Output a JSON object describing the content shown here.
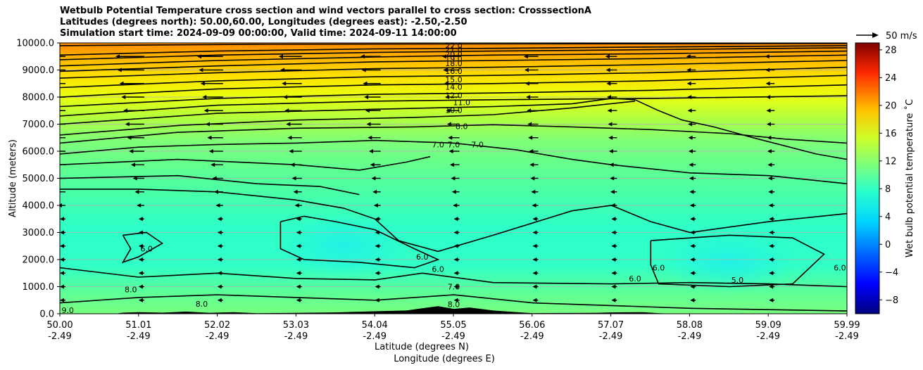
{
  "chart_data": {
    "type": "heatmap",
    "title": [
      "Wetbulb Potential Temperature cross section and wind vectors parallel to cross section: CrosssectionA",
      "Latitudes (degrees north): 50.00,60.00, Longitudes (degrees east): -2.50,-2.50",
      "Simulation start time: 2024-09-09 00:00:00, Valid time: 2024-09-11 14:00:00"
    ],
    "ylabel": "Altitude (meters)",
    "xlabel_lat": "Latitude (degrees N)",
    "xlabel_lon": "Longitude (degrees E)",
    "ylim": [
      0,
      10000
    ],
    "yticks": [
      "0.0",
      "1000.0",
      "2000.0",
      "3000.0",
      "4000.0",
      "5000.0",
      "6000.0",
      "7000.0",
      "8000.0",
      "9000.0",
      "10000.0"
    ],
    "xticks_lat": [
      "50.00",
      "51.01",
      "52.02",
      "53.03",
      "54.04",
      "55.05",
      "56.06",
      "57.07",
      "58.08",
      "59.09",
      "59.99"
    ],
    "xticks_lon": [
      "-2.49",
      "-2.49",
      "-2.49",
      "-2.49",
      "-2.49",
      "-2.49",
      "-2.49",
      "-2.49",
      "-2.49",
      "-2.49",
      "-2.49"
    ],
    "grid": "horizontal",
    "colorbar": {
      "label": "Wet bulb potential temperature ˚C",
      "colormap": "jet",
      "range": [
        -10,
        29
      ],
      "ticks": [
        "−8",
        "−4",
        "0",
        "4",
        "8",
        "12",
        "16",
        "20",
        "24",
        "28"
      ]
    },
    "quiver_key": "50 m/s",
    "contour_labels": [
      "22.0",
      "21.0",
      "20.0",
      "19.0",
      "18.0",
      "16.0",
      "15.0",
      "14.0",
      "12.0",
      "11.0",
      "10.0",
      "8.0",
      "7.0",
      "7.0",
      "7.0",
      "6.0",
      "6.0",
      "6.0",
      "6.0",
      "5.0",
      "6.0",
      "7.0",
      "8.0",
      "8.0",
      "8.0",
      "9.0",
      "6.0"
    ],
    "contour_lines": [
      {
        "level": 22,
        "points": [
          [
            50.0,
            9900
          ],
          [
            52.5,
            9950
          ],
          [
            55.0,
            9960
          ],
          [
            57.5,
            9970
          ],
          [
            59.99,
            9980
          ]
        ]
      },
      {
        "level": 20,
        "points": [
          [
            50.0,
            9550
          ],
          [
            52.0,
            9700
          ],
          [
            54.0,
            9780
          ],
          [
            55.5,
            9800
          ],
          [
            57.5,
            9850
          ],
          [
            59.99,
            9900
          ]
        ]
      },
      {
        "level": 19,
        "points": [
          [
            50.0,
            9380
          ],
          [
            52.0,
            9550
          ],
          [
            54.0,
            9650
          ],
          [
            55.5,
            9700
          ],
          [
            57.5,
            9750
          ],
          [
            59.99,
            9820
          ]
        ]
      },
      {
        "level": 18,
        "points": [
          [
            50.0,
            9150
          ],
          [
            52.0,
            9350
          ],
          [
            54.0,
            9480
          ],
          [
            55.5,
            9550
          ],
          [
            57.5,
            9600
          ],
          [
            59.99,
            9700
          ]
        ]
      },
      {
        "level": 17,
        "points": [
          [
            50.0,
            8950
          ],
          [
            52.0,
            9150
          ],
          [
            54.0,
            9300
          ],
          [
            55.5,
            9350
          ],
          [
            57.5,
            9420
          ],
          [
            59.99,
            9550
          ]
        ]
      },
      {
        "level": 16,
        "points": [
          [
            50.0,
            8700
          ],
          [
            52.0,
            8900
          ],
          [
            54.0,
            9050
          ],
          [
            55.5,
            9100
          ],
          [
            57.5,
            9200
          ],
          [
            59.99,
            9350
          ]
        ]
      },
      {
        "level": 15,
        "points": [
          [
            50.0,
            8350
          ],
          [
            52.0,
            8600
          ],
          [
            54.0,
            8750
          ],
          [
            55.5,
            8800
          ],
          [
            57.5,
            8900
          ],
          [
            59.99,
            9100
          ]
        ]
      },
      {
        "level": 14,
        "points": [
          [
            50.0,
            8000
          ],
          [
            52.0,
            8300
          ],
          [
            54.0,
            8450
          ],
          [
            55.5,
            8500
          ],
          [
            57.5,
            8600
          ],
          [
            59.99,
            8800
          ]
        ]
      },
      {
        "level": 12,
        "points": [
          [
            50.0,
            7650
          ],
          [
            52.0,
            7950
          ],
          [
            54.0,
            8100
          ],
          [
            55.5,
            8150
          ],
          [
            57.5,
            8250
          ],
          [
            59.99,
            8450
          ]
        ]
      },
      {
        "level": 11,
        "points": [
          [
            50.0,
            7300
          ],
          [
            52.0,
            7700
          ],
          [
            54.0,
            7850
          ],
          [
            55.5,
            7900
          ],
          [
            57.5,
            7950
          ],
          [
            59.99,
            8050
          ]
        ]
      },
      {
        "level": 10,
        "points": [
          [
            50.0,
            7000
          ],
          [
            52.0,
            7400
          ],
          [
            54.0,
            7550
          ],
          [
            55.5,
            7650
          ],
          [
            56.5,
            7750
          ],
          [
            57.0,
            7950
          ],
          [
            57.3,
            7900
          ]
        ]
      },
      {
        "level": 9,
        "points": [
          [
            50.0,
            6600
          ],
          [
            51.5,
            6950
          ],
          [
            53.0,
            7150
          ],
          [
            54.5,
            7250
          ],
          [
            55.5,
            7350
          ],
          [
            56.5,
            7600
          ],
          [
            57.3,
            7850
          ]
        ]
      },
      {
        "level": 8,
        "points": [
          [
            50.0,
            6300
          ],
          [
            51.5,
            6700
          ],
          [
            53.0,
            6850
          ],
          [
            54.5,
            6900
          ],
          [
            55.5,
            6980
          ],
          [
            56.5,
            6900
          ],
          [
            57.5,
            6800
          ],
          [
            58.5,
            6650
          ],
          [
            59.2,
            6450
          ],
          [
            59.99,
            6300
          ]
        ]
      },
      {
        "level": 8,
        "points": [
          [
            57.3,
            7900
          ],
          [
            57.6,
            7500
          ],
          [
            57.9,
            7150
          ],
          [
            58.3,
            6900
          ],
          [
            58.8,
            6500
          ],
          [
            59.2,
            6200
          ],
          [
            59.6,
            5900
          ],
          [
            59.99,
            5700
          ]
        ]
      },
      {
        "level": 7,
        "points": [
          [
            50.0,
            5900
          ],
          [
            51.0,
            6150
          ],
          [
            52.0,
            6250
          ],
          [
            53.0,
            6300
          ],
          [
            54.0,
            6400
          ],
          [
            55.0,
            6300
          ],
          [
            55.8,
            6050
          ],
          [
            56.5,
            5700
          ],
          [
            57.0,
            5500
          ],
          [
            58.0,
            5200
          ],
          [
            59.0,
            5100
          ],
          [
            59.99,
            4800
          ]
        ]
      },
      {
        "level": 7,
        "points": [
          [
            50.0,
            5500
          ],
          [
            51.5,
            5700
          ],
          [
            53.0,
            5500
          ],
          [
            53.8,
            5300
          ],
          [
            54.4,
            5600
          ],
          [
            54.7,
            5800
          ]
        ]
      },
      {
        "level": 7,
        "points": [
          [
            50.0,
            5000
          ],
          [
            51.5,
            5100
          ],
          [
            52.5,
            4800
          ],
          [
            53.3,
            4700
          ],
          [
            53.8,
            4400
          ]
        ]
      },
      {
        "level": 7,
        "points": [
          [
            50.0,
            4600
          ],
          [
            51.0,
            4600
          ],
          [
            52.0,
            4500
          ],
          [
            53.0,
            4200
          ],
          [
            53.6,
            3900
          ],
          [
            54.0,
            3500
          ],
          [
            54.3,
            2700
          ],
          [
            54.8,
            2300
          ],
          [
            55.5,
            2900
          ],
          [
            56.5,
            3800
          ],
          [
            57.0,
            4000
          ],
          [
            57.5,
            3400
          ],
          [
            58.0,
            3000
          ],
          [
            59.0,
            3400
          ],
          [
            59.99,
            3700
          ]
        ]
      },
      {
        "level": 7,
        "points": [
          [
            50.0,
            1700
          ],
          [
            51.0,
            1350
          ],
          [
            52.0,
            1500
          ],
          [
            53.0,
            1300
          ],
          [
            54.0,
            1250
          ],
          [
            54.6,
            1500
          ],
          [
            55.5,
            1150
          ],
          [
            57.0,
            1100
          ],
          [
            58.0,
            1150
          ],
          [
            59.0,
            1100
          ],
          [
            59.99,
            1000
          ]
        ]
      },
      {
        "level": 6,
        "points": [
          [
            50.8,
            2900
          ],
          [
            51.1,
            3000
          ],
          [
            51.3,
            2600
          ],
          [
            51.0,
            2100
          ],
          [
            50.8,
            1900
          ],
          [
            50.9,
            2400
          ],
          [
            50.8,
            2900
          ]
        ]
      },
      {
        "level": 6,
        "points": [
          [
            52.8,
            3400
          ],
          [
            53.1,
            3600
          ],
          [
            53.5,
            3400
          ],
          [
            54.0,
            3100
          ],
          [
            54.5,
            2400
          ],
          [
            54.8,
            2000
          ],
          [
            54.5,
            1700
          ],
          [
            53.8,
            1900
          ],
          [
            53.1,
            2000
          ],
          [
            52.8,
            2400
          ],
          [
            52.8,
            3400
          ]
        ]
      },
      {
        "level": 6,
        "points": [
          [
            57.5,
            2700
          ],
          [
            58.5,
            2900
          ],
          [
            59.3,
            2800
          ],
          [
            59.7,
            2200
          ],
          [
            59.3,
            1100
          ],
          [
            58.5,
            1000
          ],
          [
            57.6,
            1100
          ],
          [
            57.5,
            1800
          ],
          [
            57.5,
            2700
          ]
        ]
      },
      {
        "level": 8,
        "points": [
          [
            50.0,
            400
          ],
          [
            51.0,
            600
          ],
          [
            52.0,
            700
          ],
          [
            53.0,
            600
          ],
          [
            54.0,
            500
          ],
          [
            55.0,
            700
          ],
          [
            56.0,
            400
          ],
          [
            57.0,
            300
          ],
          [
            58.0,
            200
          ],
          [
            59.99,
            100
          ]
        ]
      }
    ]
  }
}
